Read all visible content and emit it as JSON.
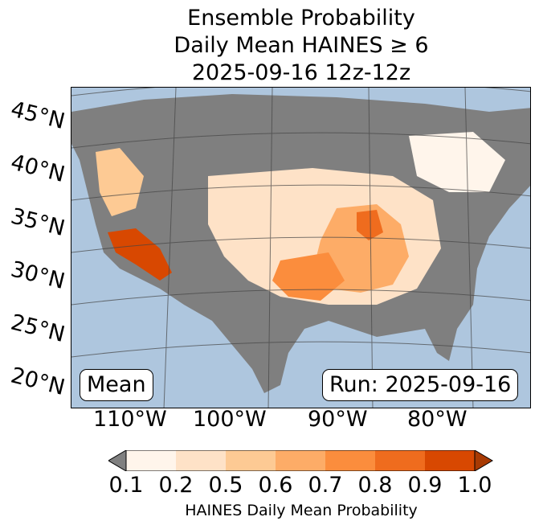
{
  "title": {
    "line1": "Ensemble Probability",
    "line2": "Daily Mean HAINES ≥ 6",
    "line3": "2025-09-16 12z-12z"
  },
  "map": {
    "lat_labels": [
      "45°N",
      "40°N",
      "35°N",
      "30°N",
      "25°N",
      "20°N"
    ],
    "lon_labels": [
      "110°W",
      "100°W",
      "90°W",
      "80°W"
    ],
    "ocean_color": "#aec6de",
    "nodata_color": "#7f7f7f",
    "mean_label": "Mean",
    "run_label": "Run: 2025-09-16"
  },
  "colorbar": {
    "label": "HAINES Daily Mean Probability",
    "ticks": [
      "0.1",
      "0.2",
      "0.5",
      "0.6",
      "0.7",
      "0.8",
      "0.9",
      "1.0"
    ],
    "colors": [
      "#fff5eb",
      "#fee2c7",
      "#fdca94",
      "#fdac67",
      "#fb8d3d",
      "#ef6c1e",
      "#d84801",
      "#a83a03"
    ],
    "under_color": "#808080"
  }
}
